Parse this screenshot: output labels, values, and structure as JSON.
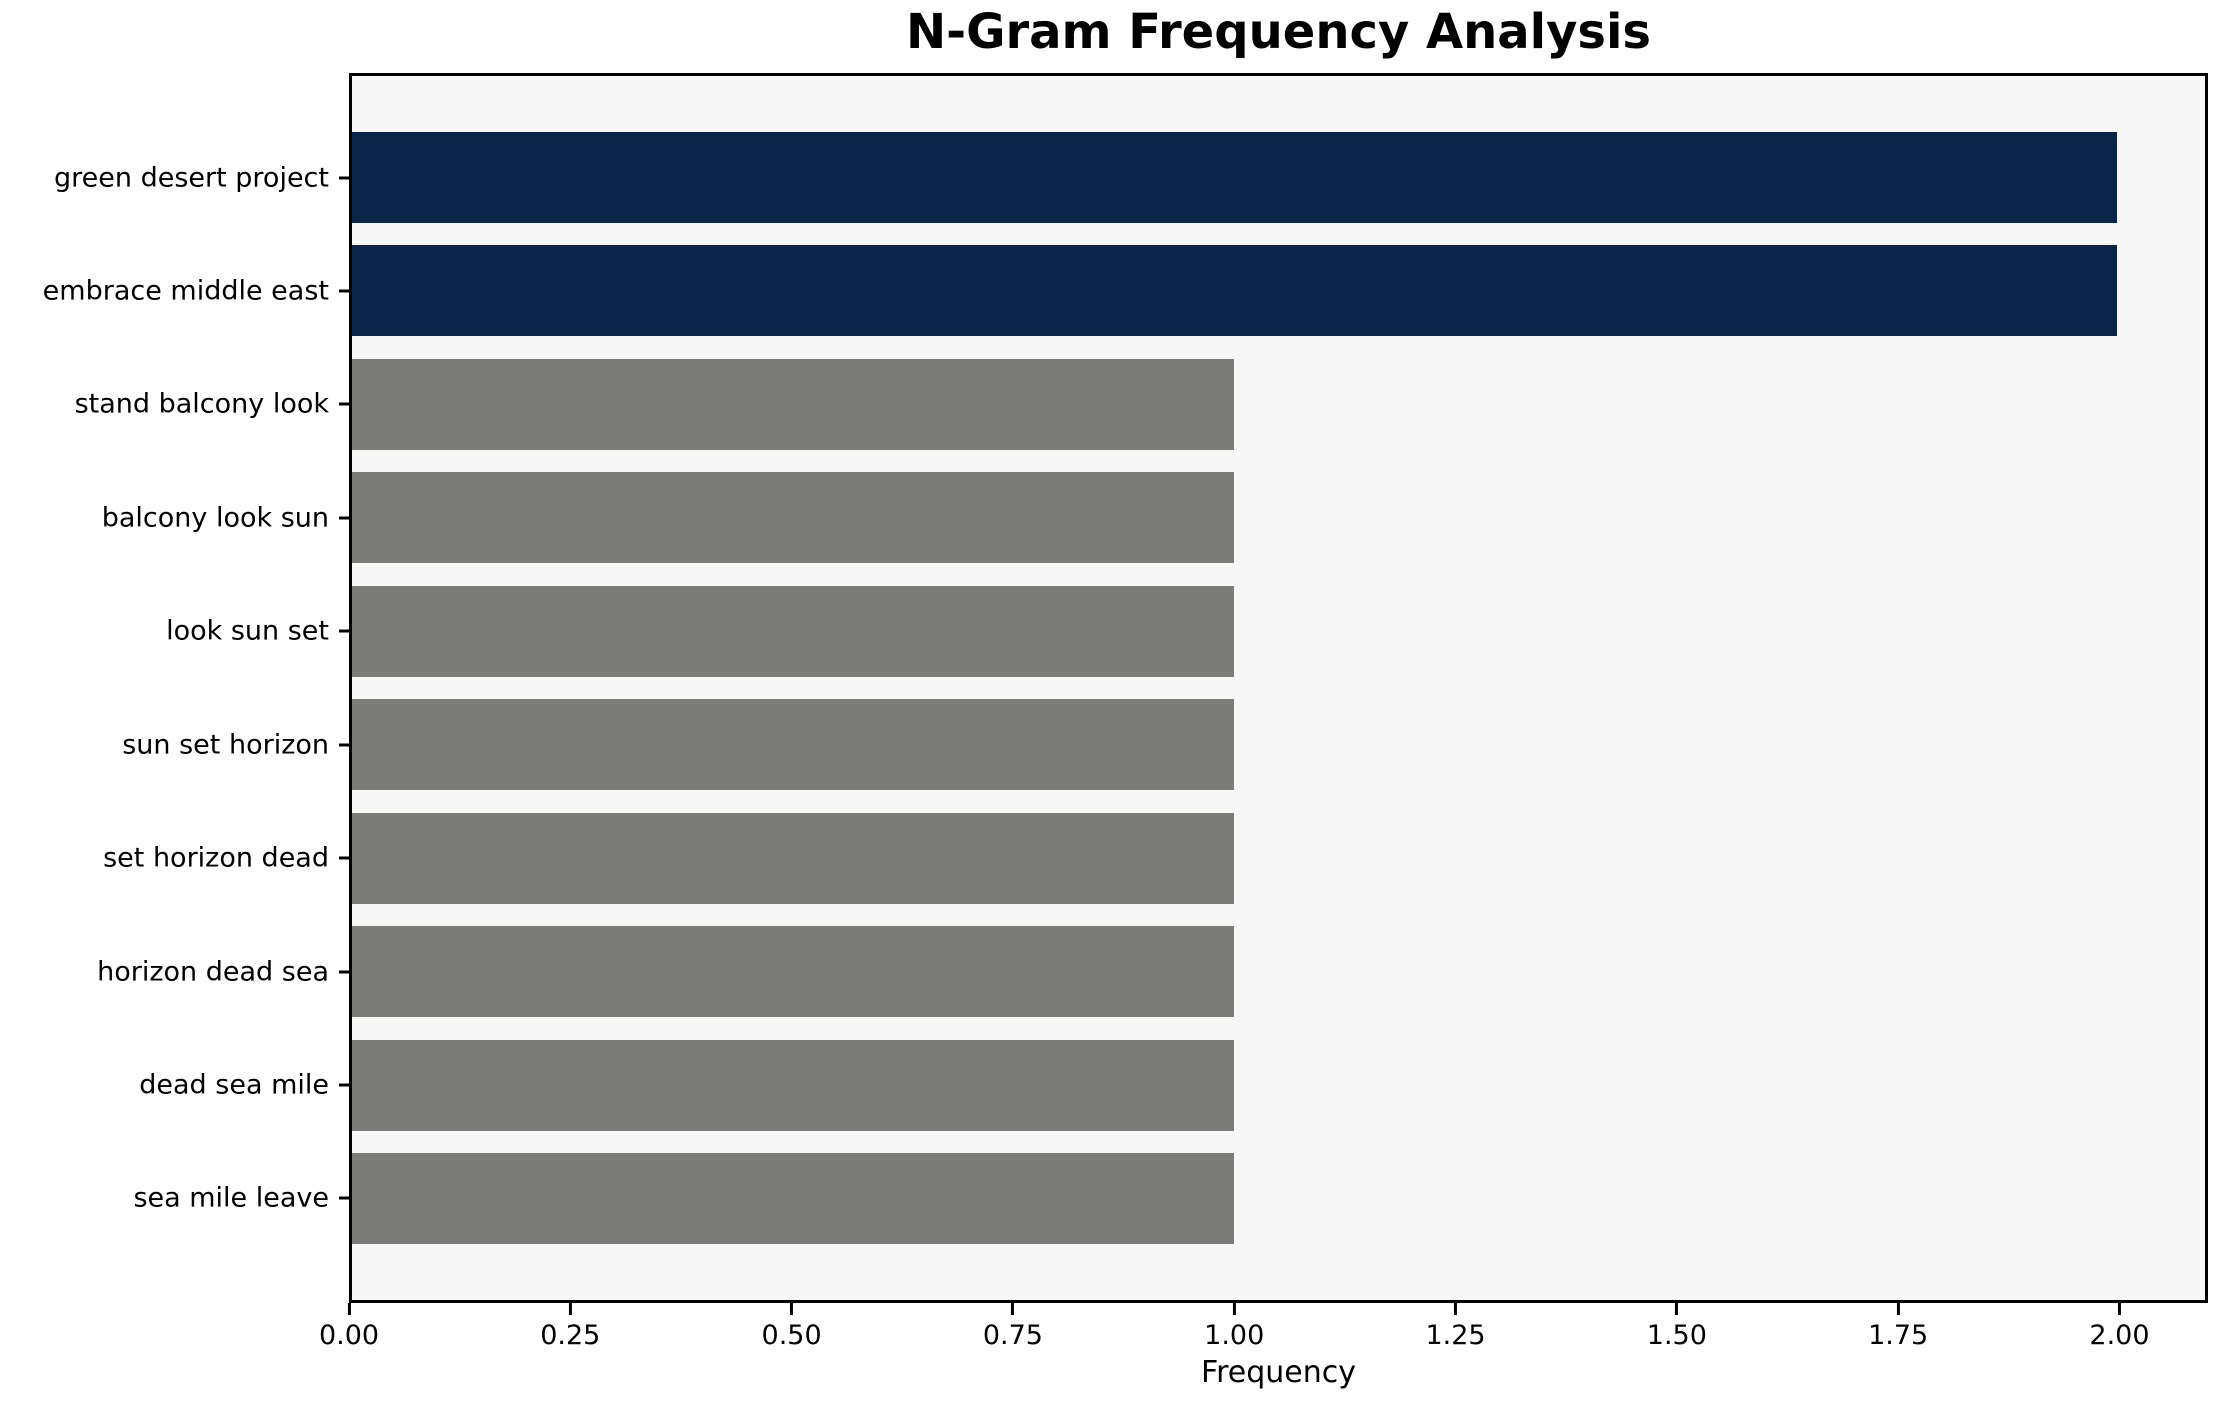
{
  "chart_data": {
    "type": "bar",
    "orientation": "horizontal",
    "title": "N-Gram Frequency Analysis",
    "xlabel": "Frequency",
    "ylabel": "",
    "categories": [
      "green desert project",
      "embrace middle east",
      "stand balcony look",
      "balcony look sun",
      "look sun set",
      "sun set horizon",
      "set horizon dead",
      "horizon dead sea",
      "dead sea mile",
      "sea mile leave"
    ],
    "values": [
      2,
      2,
      1,
      1,
      1,
      1,
      1,
      1,
      1,
      1
    ],
    "bar_colors": [
      "#0a2547",
      "#0a2547",
      "#7b7b78",
      "#7b7b78",
      "#7b7b78",
      "#7b7b78",
      "#7b7b78",
      "#7b7b78",
      "#7b7b78",
      "#7b7b78"
    ],
    "highlight_color": "#0a2547",
    "default_color": "#7b7b78",
    "xlim": [
      0,
      2.1
    ],
    "xticks": [
      0,
      0.25,
      0.5,
      0.75,
      1.0,
      1.25,
      1.5,
      1.75,
      2.0
    ],
    "xtick_labels": [
      "0.00",
      "0.25",
      "0.50",
      "0.75",
      "1.00",
      "1.25",
      "1.50",
      "1.75",
      "2.00"
    ],
    "grid": false,
    "legend": null,
    "plot_bg": "#f7f7f7",
    "spine_color": "#000000"
  }
}
